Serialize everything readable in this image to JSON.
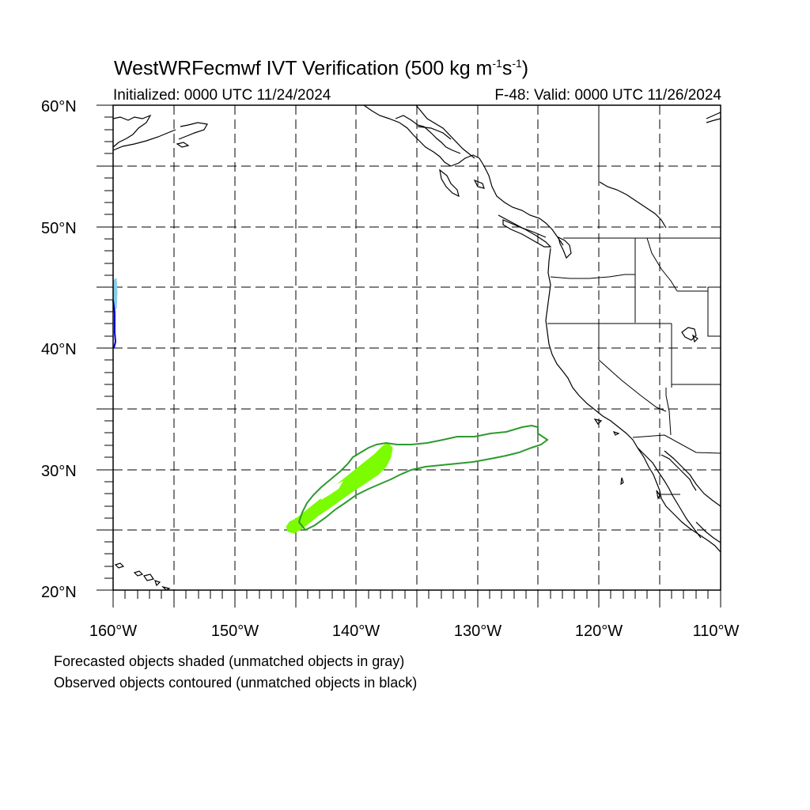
{
  "title": {
    "text": "WestWRFecmwf IVT Verification (500 kg m",
    "sup1": "-1",
    "mid": "s",
    "sup2": "-1",
    "end": ")"
  },
  "subtitle_left": "Initialized: 0000 UTC 11/24/2024",
  "subtitle_right": "F-48: Valid: 0000 UTC 11/26/2024",
  "lat_labels": [
    "60°N",
    "50°N",
    "40°N",
    "30°N",
    "20°N"
  ],
  "lon_labels": [
    "160°W",
    "150°W",
    "140°W",
    "130°W",
    "120°W",
    "110°W"
  ],
  "notes": [
    "Forecasted objects shaded (unmatched objects in gray)",
    "Observed objects contoured (unmatched objects in black)"
  ],
  "colors": {
    "forecast_fill": "#7cfc00",
    "observed_contour": "#2e9a2e",
    "edge_forecast": "#87ceeb",
    "edge_observed": "#0000cc"
  }
}
